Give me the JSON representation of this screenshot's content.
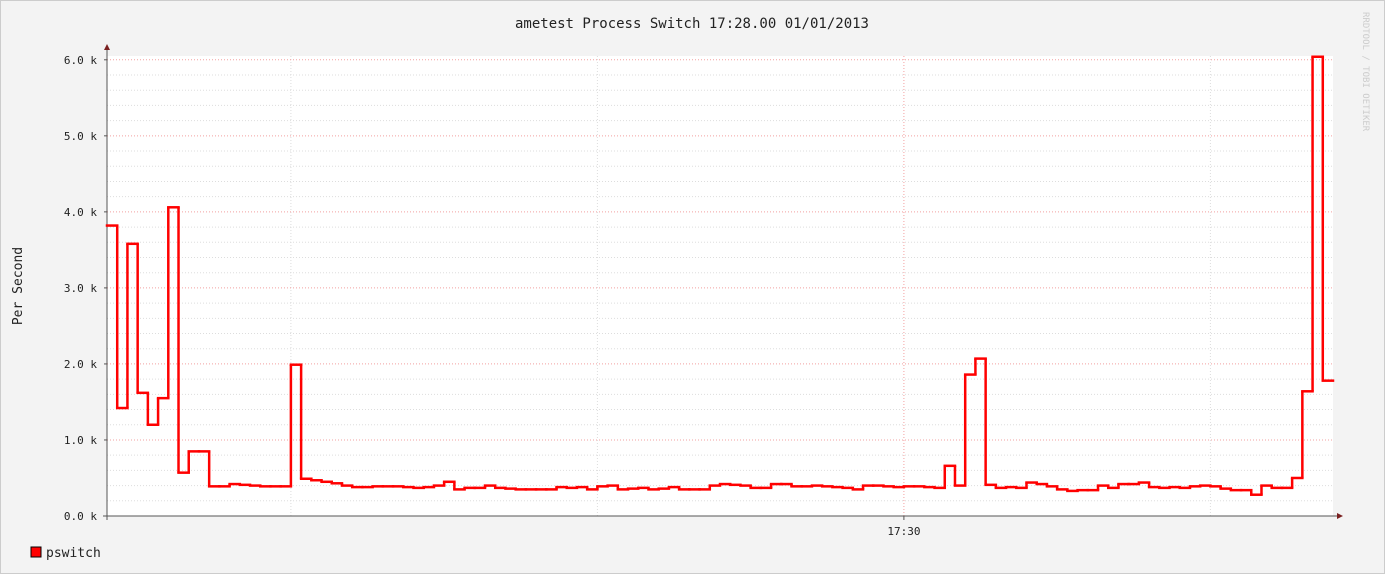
{
  "chart_data": {
    "type": "step",
    "title": "ametest Process Switch 17:28.00 01/01/2013",
    "y_label": "Per Second",
    "watermark": "RRDTOOL / TOBI OETIKER",
    "categories": [
      null,
      null,
      null,
      null,
      null,
      null,
      null,
      null,
      null,
      null,
      null,
      null,
      null,
      null,
      null,
      null,
      null,
      null,
      null,
      null,
      null,
      null,
      null,
      null,
      null,
      null,
      null,
      null,
      null,
      null,
      null,
      null,
      null,
      null,
      null,
      null,
      null,
      null,
      null,
      null,
      null,
      null,
      null,
      null,
      null,
      null,
      null,
      null,
      null,
      null,
      null,
      null,
      null,
      null,
      null,
      null,
      null,
      null,
      null,
      null,
      null,
      null,
      null,
      null,
      null,
      null,
      null,
      null,
      null,
      null,
      null,
      null,
      null,
      null,
      null,
      null,
      null,
      null,
      "17:30",
      null,
      null,
      null,
      null,
      null,
      null,
      null,
      null,
      null,
      null,
      null,
      null,
      null,
      null,
      null,
      null,
      null,
      null,
      null,
      null,
      null,
      null,
      null,
      null,
      null,
      null,
      null,
      null,
      null,
      null,
      null,
      null,
      null,
      null,
      null,
      null,
      null,
      null,
      null,
      null,
      null
    ],
    "series": [
      {
        "name": "pswitch",
        "color": "#ff0000",
        "values": [
          3820,
          1420,
          3580,
          1620,
          1200,
          1550,
          4060,
          570,
          850,
          850,
          390,
          390,
          420,
          410,
          400,
          390,
          390,
          390,
          1990,
          490,
          470,
          450,
          430,
          400,
          380,
          380,
          390,
          390,
          390,
          380,
          370,
          380,
          400,
          450,
          350,
          370,
          370,
          400,
          370,
          360,
          350,
          350,
          350,
          350,
          380,
          370,
          380,
          350,
          390,
          400,
          350,
          360,
          370,
          350,
          360,
          380,
          350,
          350,
          350,
          400,
          420,
          410,
          400,
          370,
          370,
          420,
          420,
          390,
          390,
          400,
          390,
          380,
          370,
          350,
          400,
          400,
          390,
          380,
          390,
          390,
          380,
          370,
          660,
          400,
          1860,
          2070,
          410,
          370,
          380,
          370,
          440,
          420,
          390,
          350,
          330,
          340,
          340,
          400,
          370,
          420,
          420,
          440,
          380,
          370,
          380,
          370,
          390,
          400,
          390,
          360,
          340,
          340,
          280,
          400,
          370,
          370,
          500,
          1640,
          6040,
          1780
        ]
      }
    ],
    "ylim": [
      0,
      6050
    ],
    "yticks": [
      {
        "value": 0,
        "label": "0.0 k"
      },
      {
        "value": 1000,
        "label": "1.0 k"
      },
      {
        "value": 2000,
        "label": "2.0 k"
      },
      {
        "value": 3000,
        "label": "3.0 k"
      },
      {
        "value": 4000,
        "label": "4.0 k"
      },
      {
        "value": 5000,
        "label": "5.0 k"
      },
      {
        "value": 6000,
        "label": "6.0 k"
      }
    ],
    "grid": true,
    "legend": "bottom-left"
  }
}
